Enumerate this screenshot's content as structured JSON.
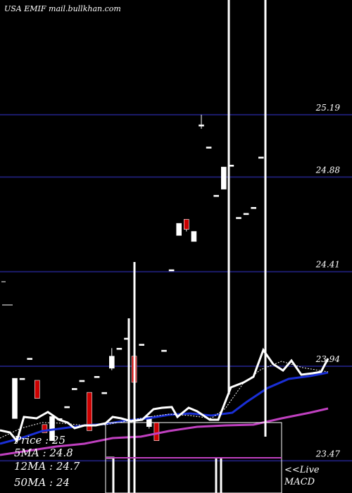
{
  "header": "USA EMIF mail.bullkhan.com",
  "legend": {
    "price": "Price   : 25",
    "ma5": "5MA : 24.8",
    "ma12": "12MA : 24.7",
    "ma50": "50MA : 24",
    "live": "<<Live",
    "macd": "MACD"
  },
  "colors": {
    "background": "#000000",
    "grid": "#1c1c6e",
    "up_candle": "#ffffff",
    "down_candle": "#cc0000",
    "ma_short": "#ffffff",
    "ma_mid": "#1a2fd6",
    "ma_long": "#c040c0",
    "ma_dotted": "#ffffff"
  },
  "chart_data": {
    "type": "candlestick",
    "y_ticks": [
      "25.19",
      "24.88",
      "24.41",
      "23.94",
      "23.47"
    ],
    "y_tick_values": [
      25.19,
      24.88,
      24.41,
      23.94,
      23.47
    ],
    "ylim": [
      23.31,
      25.76
    ],
    "candles": [
      {
        "o": 23.68,
        "c": 23.88,
        "h": 23.88,
        "l": 23.68,
        "dir": "up"
      },
      {
        "o": 23.88,
        "c": 23.88,
        "h": 23.88,
        "l": 23.88,
        "dir": "up"
      },
      {
        "o": 23.98,
        "c": 23.98,
        "h": 23.98,
        "l": 23.98,
        "dir": "up"
      },
      {
        "o": 23.87,
        "c": 23.78,
        "h": 23.87,
        "l": 23.78,
        "dir": "down"
      },
      {
        "o": 23.65,
        "c": 23.61,
        "h": 23.65,
        "l": 23.61,
        "dir": "down"
      },
      {
        "o": 23.57,
        "c": 23.69,
        "h": 23.69,
        "l": 23.57,
        "dir": "up"
      },
      {
        "o": 23.68,
        "c": 23.68,
        "h": 23.68,
        "l": 23.68,
        "dir": "up"
      },
      {
        "o": 23.74,
        "c": 23.74,
        "h": 23.74,
        "l": 23.74,
        "dir": "up"
      },
      {
        "o": 23.83,
        "c": 23.83,
        "h": 23.83,
        "l": 23.83,
        "dir": "up"
      },
      {
        "o": 23.87,
        "c": 23.87,
        "h": 23.87,
        "l": 23.87,
        "dir": "up"
      },
      {
        "o": 23.81,
        "c": 23.62,
        "h": 23.81,
        "l": 23.62,
        "dir": "down"
      },
      {
        "o": 23.89,
        "c": 23.89,
        "h": 23.89,
        "l": 23.89,
        "dir": "up"
      },
      {
        "o": 23.81,
        "c": 23.81,
        "h": 23.81,
        "l": 23.81,
        "dir": "up"
      },
      {
        "o": 23.93,
        "c": 23.99,
        "h": 24.03,
        "l": 23.92,
        "dir": "up"
      },
      {
        "o": 24.03,
        "c": 24.03,
        "h": 24.03,
        "l": 24.03,
        "dir": "up"
      },
      {
        "o": 24.08,
        "c": 24.08,
        "h": 24.08,
        "l": 24.08,
        "dir": "up"
      },
      {
        "o": 23.99,
        "c": 23.86,
        "h": 23.99,
        "l": 23.84,
        "dir": "down"
      },
      {
        "o": 24.05,
        "c": 24.05,
        "h": 24.05,
        "l": 24.05,
        "dir": "up"
      },
      {
        "o": 23.64,
        "c": 23.69,
        "h": 23.69,
        "l": 23.63,
        "dir": "up"
      },
      {
        "o": 23.66,
        "c": 23.57,
        "h": 23.66,
        "l": 23.57,
        "dir": "down"
      },
      {
        "o": 24.02,
        "c": 24.02,
        "h": 24.02,
        "l": 24.02,
        "dir": "up"
      },
      {
        "o": 24.42,
        "c": 24.42,
        "h": 24.42,
        "l": 24.42,
        "dir": "up"
      },
      {
        "o": 24.59,
        "c": 24.65,
        "h": 24.65,
        "l": 24.59,
        "dir": "up"
      },
      {
        "o": 24.67,
        "c": 24.62,
        "h": 24.67,
        "l": 24.61,
        "dir": "down"
      },
      {
        "o": 24.56,
        "c": 24.61,
        "h": 24.61,
        "l": 24.56,
        "dir": "up"
      },
      {
        "o": 25.14,
        "c": 25.14,
        "h": 25.19,
        "l": 25.12,
        "dir": "up"
      },
      {
        "o": 25.03,
        "c": 25.03,
        "h": 25.03,
        "l": 25.03,
        "dir": "up"
      },
      {
        "o": 24.79,
        "c": 24.79,
        "h": 24.79,
        "l": 24.79,
        "dir": "up"
      },
      {
        "o": 24.82,
        "c": 24.93,
        "h": 24.93,
        "l": 24.82,
        "dir": "up"
      },
      {
        "o": 24.94,
        "c": 24.94,
        "h": 24.94,
        "l": 24.94,
        "dir": "up"
      },
      {
        "o": 24.68,
        "c": 24.68,
        "h": 24.68,
        "l": 24.68,
        "dir": "up"
      },
      {
        "o": 24.7,
        "c": 24.7,
        "h": 24.7,
        "l": 24.7,
        "dir": "up"
      },
      {
        "o": 24.73,
        "c": 24.73,
        "h": 24.73,
        "l": 24.73,
        "dir": "up"
      },
      {
        "o": 24.98,
        "c": 24.98,
        "h": 24.98,
        "l": 24.98,
        "dir": "up"
      }
    ]
  }
}
